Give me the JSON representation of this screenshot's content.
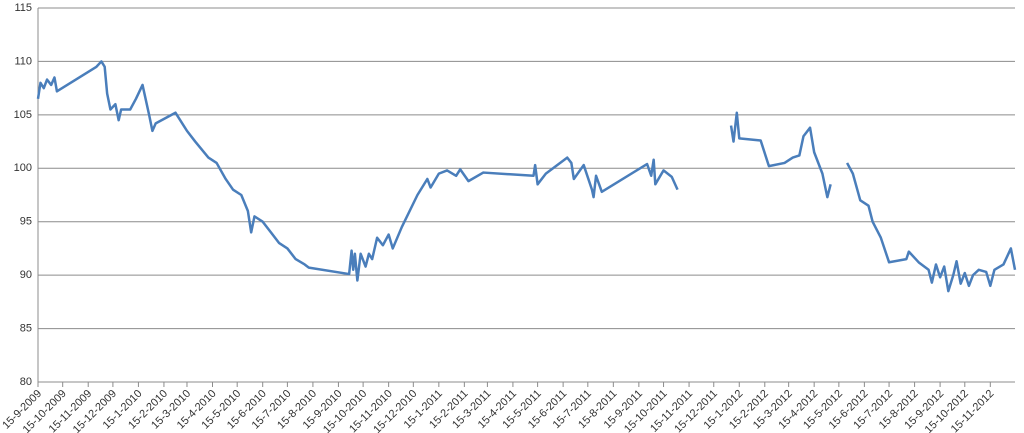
{
  "chart_data": {
    "type": "line",
    "x": [
      "2009-09-15",
      "2009-09-18",
      "2009-09-22",
      "2009-09-26",
      "2009-10-01",
      "2009-10-05",
      "2009-10-08",
      "2009-11-25",
      "2009-12-01",
      "2009-12-05",
      "2009-12-08",
      "2009-12-12",
      "2009-12-18",
      "2009-12-22",
      "2009-12-25",
      "2010-01-05",
      "2010-01-12",
      "2010-01-20",
      "2010-01-28",
      "2010-02-01",
      "2010-02-05",
      "2010-03-01",
      "2010-03-15",
      "2010-03-25",
      "2010-04-10",
      "2010-04-20",
      "2010-05-01",
      "2010-05-10",
      "2010-05-20",
      "2010-05-28",
      "2010-06-01",
      "2010-06-05",
      "2010-06-15",
      "2010-06-25",
      "2010-07-05",
      "2010-07-15",
      "2010-07-25",
      "2010-08-05",
      "2010-08-10",
      "2010-09-28",
      "2010-10-01",
      "2010-10-03",
      "2010-10-05",
      "2010-10-08",
      "2010-10-12",
      "2010-10-18",
      "2010-10-22",
      "2010-10-26",
      "2010-11-01",
      "2010-11-08",
      "2010-11-15",
      "2010-11-20",
      "2010-12-01",
      "2010-12-20",
      "2011-01-01",
      "2011-01-05",
      "2011-01-15",
      "2011-01-25",
      "2011-02-05",
      "2011-02-10",
      "2011-02-20",
      "2011-03-10",
      "2011-05-10",
      "2011-05-12",
      "2011-05-15",
      "2011-05-25",
      "2011-06-20",
      "2011-06-25",
      "2011-06-28",
      "2011-07-10",
      "2011-07-20",
      "2011-07-22",
      "2011-07-25",
      "2011-08-01",
      "2011-09-25",
      "2011-09-30",
      "2011-10-03",
      "2011-10-05",
      "2011-10-15",
      "2011-10-25",
      "2011-11-01",
      "2011-12-01",
      "2012-01-05",
      "2012-01-08",
      "2012-01-12",
      "2012-01-15",
      "2012-02-10",
      "2012-02-20",
      "2012-03-10",
      "2012-03-20",
      "2012-03-28",
      "2012-04-02",
      "2012-04-10",
      "2012-04-15",
      "2012-04-25",
      "2012-05-01",
      "2012-05-05",
      "2012-05-15",
      "2012-05-25",
      "2012-06-01",
      "2012-06-10",
      "2012-06-20",
      "2012-06-25",
      "2012-07-05",
      "2012-07-15",
      "2012-08-05",
      "2012-08-08",
      "2012-08-20",
      "2012-09-01",
      "2012-09-05",
      "2012-09-10",
      "2012-09-15",
      "2012-09-20",
      "2012-09-25",
      "2012-10-01",
      "2012-10-05",
      "2012-10-10",
      "2012-10-15",
      "2012-10-20",
      "2012-10-25",
      "2012-11-01",
      "2012-11-10",
      "2012-11-15",
      "2012-11-20",
      "2012-12-01",
      "2012-12-10",
      "2012-12-15"
    ],
    "series": [
      {
        "color": "#4a7ebb",
        "values": [
          106.5,
          108,
          107.5,
          108.3,
          107.8,
          108.5,
          107.2,
          109.5,
          110,
          109.5,
          107,
          105.5,
          106,
          104.5,
          105.5,
          105.5,
          106.5,
          107.8,
          105,
          103.5,
          104.2,
          105.2,
          103.5,
          102.5,
          101,
          100.5,
          99,
          98,
          97.5,
          96,
          94,
          95.5,
          95,
          94,
          93,
          92.5,
          91.5,
          91,
          90.7,
          90.1,
          92.3,
          90.5,
          92,
          89.5,
          92,
          90.8,
          92,
          91.5,
          93.5,
          92.8,
          93.8,
          92.5,
          94.5,
          97.5,
          99,
          98.2,
          99.5,
          99.8,
          99.3,
          99.9,
          98.8,
          99.6,
          99.3,
          100.3,
          98.5,
          99.5,
          101,
          100.5,
          99,
          100.3,
          98,
          97.3,
          99.3,
          97.8,
          100.4,
          99.3,
          100.8,
          98.5,
          99.8,
          99.2,
          98,
          null,
          104,
          102.5,
          105.2,
          102.8,
          102.6,
          100.2,
          100.5,
          101,
          101.2,
          103,
          103.8,
          101.5,
          99.5,
          97.3,
          98.5,
          null,
          100.5,
          99.5,
          97,
          96.5,
          95,
          93.5,
          91.2,
          91.5,
          92.2,
          91.2,
          90.5,
          89.3,
          91,
          89.8,
          90.8,
          88.5,
          90,
          91.3,
          89.2,
          90.2,
          89,
          90,
          90.5,
          90.3,
          89,
          90.5,
          91,
          92.5,
          90.5
        ]
      }
    ],
    "xlim": [
      "2009-09-15",
      "2012-12-15"
    ],
    "xticks": [
      {
        "value": "2009-09-15",
        "label": "15-9-2009"
      },
      {
        "value": "2009-10-15",
        "label": "15-10-2009"
      },
      {
        "value": "2009-11-15",
        "label": "15-11-2009"
      },
      {
        "value": "2009-12-15",
        "label": "15-12-2009"
      },
      {
        "value": "2010-01-15",
        "label": "15-1-2010"
      },
      {
        "value": "2010-02-15",
        "label": "15-2-2010"
      },
      {
        "value": "2010-03-15",
        "label": "15-3-2010"
      },
      {
        "value": "2010-04-15",
        "label": "15-4-2010"
      },
      {
        "value": "2010-05-15",
        "label": "15-5-2010"
      },
      {
        "value": "2010-06-15",
        "label": "15-6-2010"
      },
      {
        "value": "2010-07-15",
        "label": "15-7-2010"
      },
      {
        "value": "2010-08-15",
        "label": "15-8-2010"
      },
      {
        "value": "2010-09-15",
        "label": "15-9-2010"
      },
      {
        "value": "2010-10-15",
        "label": "15-10-2010"
      },
      {
        "value": "2010-11-15",
        "label": "15-11-2010"
      },
      {
        "value": "2010-12-15",
        "label": "15-12-2010"
      },
      {
        "value": "2011-01-15",
        "label": "15-1-2011"
      },
      {
        "value": "2011-02-15",
        "label": "15-2-2011"
      },
      {
        "value": "2011-03-15",
        "label": "15-3-2011"
      },
      {
        "value": "2011-04-15",
        "label": "15-4-2011"
      },
      {
        "value": "2011-05-15",
        "label": "15-5-2011"
      },
      {
        "value": "2011-06-15",
        "label": "15-6-2011"
      },
      {
        "value": "2011-07-15",
        "label": "15-7-2011"
      },
      {
        "value": "2011-08-15",
        "label": "15-8-2011"
      },
      {
        "value": "2011-09-15",
        "label": "15-9-2011"
      },
      {
        "value": "2011-10-15",
        "label": "15-10-2011"
      },
      {
        "value": "2011-11-15",
        "label": "15-11-2011"
      },
      {
        "value": "2011-12-15",
        "label": "15-12-2011"
      },
      {
        "value": "2012-01-15",
        "label": "15-1-2012"
      },
      {
        "value": "2012-02-15",
        "label": "15-2-2012"
      },
      {
        "value": "2012-03-15",
        "label": "15-3-2012"
      },
      {
        "value": "2012-04-15",
        "label": "15-4-2012"
      },
      {
        "value": "2012-05-15",
        "label": "15-5-2012"
      },
      {
        "value": "2012-06-15",
        "label": "15-6-2012"
      },
      {
        "value": "2012-07-15",
        "label": "15-7-2012"
      },
      {
        "value": "2012-08-15",
        "label": "15-8-2012"
      },
      {
        "value": "2012-09-15",
        "label": "15-9-2012"
      },
      {
        "value": "2012-10-15",
        "label": "15-10-2012"
      },
      {
        "value": "2012-11-15",
        "label": "15-11-2012"
      }
    ],
    "ylim": [
      80,
      115
    ],
    "yticks": [
      80,
      85,
      90,
      95,
      100,
      105,
      110,
      115
    ],
    "grid": true
  }
}
